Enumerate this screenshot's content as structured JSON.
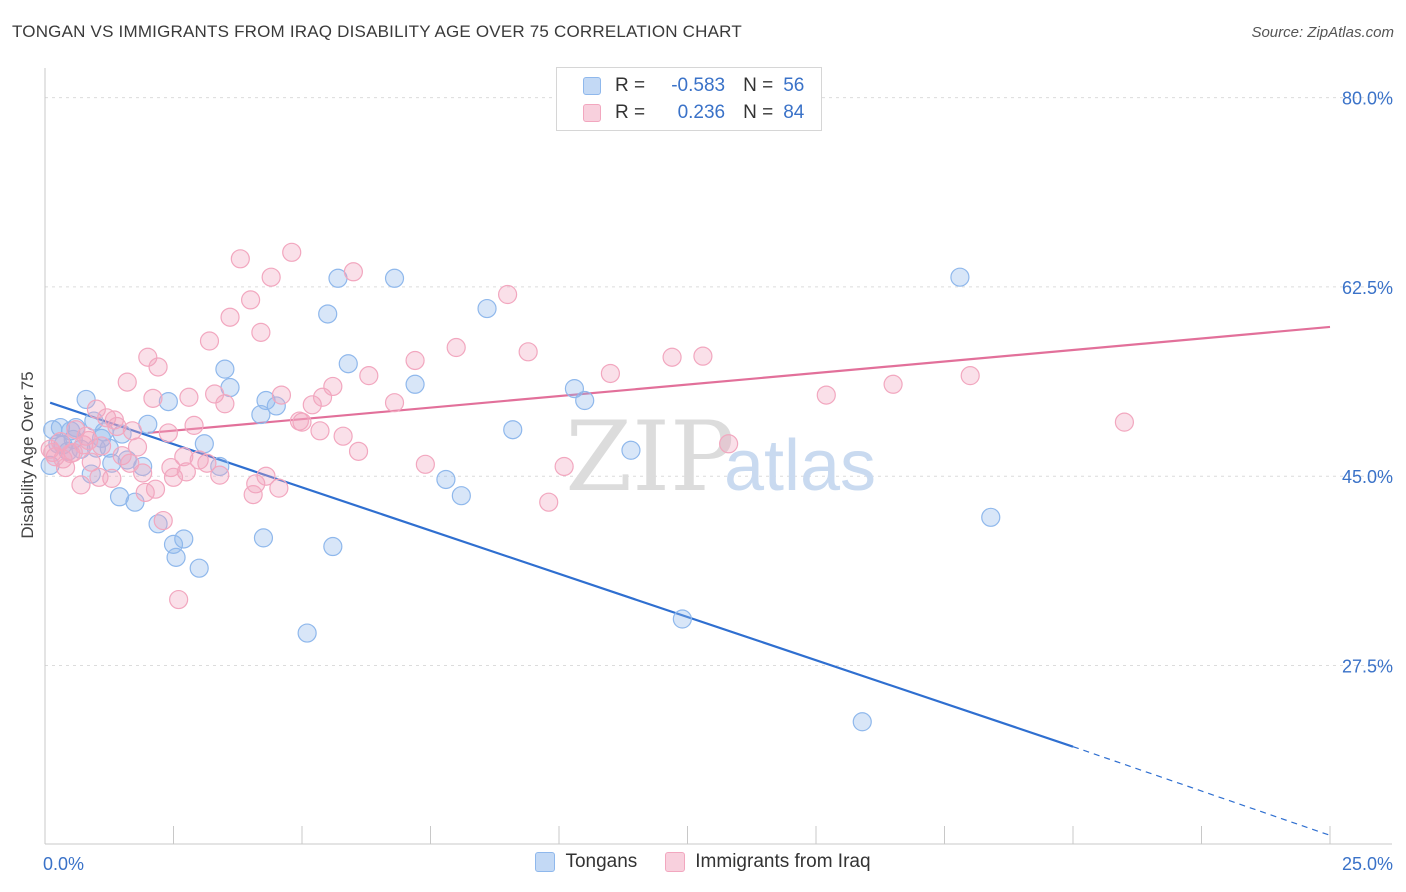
{
  "title": "TONGAN VS IMMIGRANTS FROM IRAQ DISABILITY AGE OVER 75 CORRELATION CHART",
  "source": "Source: ZipAtlas.com",
  "watermark": {
    "zip": "ZIP",
    "atlas": "atlas"
  },
  "legend": {
    "rows": [
      {
        "r_label": "R =",
        "r_value": "-0.583",
        "n_label": "N =",
        "n_value": "56"
      },
      {
        "r_label": "R =",
        "r_value": "0.236",
        "n_label": "N =",
        "n_value": "84"
      }
    ]
  },
  "chart_data": {
    "type": "scatter",
    "title": "TONGAN VS IMMIGRANTS FROM IRAQ DISABILITY AGE OVER 75 CORRELATION CHART",
    "xlabel": "",
    "ylabel": "Disability Age Over 75",
    "xlim": [
      0,
      25
    ],
    "ylim": [
      11,
      82
    ],
    "x_tick_labels": [
      "0.0%",
      "25.0%"
    ],
    "y_ticks": [
      27.5,
      45.0,
      62.5,
      80.0
    ],
    "y_tick_labels": [
      "27.5%",
      "45.0%",
      "62.5%",
      "80.0%"
    ],
    "grid": true,
    "legend_position": "top-center",
    "colors": {
      "Tongans": "#8fb8ec",
      "Immigrants from Iraq": "#f2a7bf",
      "Tongans_line": "#2f6fd0",
      "Iraq_line": "#e2709a"
    },
    "series": [
      {
        "name": "Tongans",
        "x": [
          0.15,
          0.3,
          0.5,
          0.7,
          0.25,
          0.45,
          0.9,
          1.0,
          1.3,
          1.6,
          1.9,
          2.2,
          2.5,
          3.0,
          0.6,
          0.8,
          1.1,
          1.5,
          2.0,
          2.4,
          3.1,
          3.5,
          3.6,
          4.2,
          4.3,
          4.5,
          5.5,
          5.7,
          5.9,
          6.8,
          7.2,
          7.8,
          8.1,
          8.6,
          9.1,
          10.3,
          10.5,
          11.4,
          12.4,
          15.9,
          17.8,
          18.4,
          0.35,
          0.95,
          1.45,
          1.75,
          2.7,
          3.4,
          4.25,
          5.1,
          5.6,
          2.55,
          1.15,
          0.55,
          1.25,
          0.1
        ],
        "y": [
          49.3,
          49.5,
          49.2,
          47.5,
          48.0,
          47.3,
          45.2,
          47.6,
          46.2,
          46.5,
          45.9,
          40.6,
          38.7,
          36.5,
          49.5,
          52.1,
          48.5,
          48.9,
          49.8,
          51.9,
          48.0,
          54.9,
          53.2,
          50.7,
          52.0,
          51.5,
          60.0,
          63.3,
          55.4,
          63.3,
          53.5,
          44.7,
          43.2,
          60.5,
          49.3,
          53.1,
          52.0,
          47.4,
          31.8,
          22.3,
          63.4,
          41.2,
          47.9,
          50.1,
          43.1,
          42.6,
          39.2,
          45.9,
          39.3,
          30.5,
          38.5,
          37.5,
          49.1,
          48.4,
          47.6,
          46.0
        ]
      },
      {
        "name": "Immigrants from Iraq",
        "x": [
          0.1,
          0.2,
          0.3,
          0.4,
          0.5,
          0.6,
          0.7,
          0.8,
          0.9,
          1.0,
          1.1,
          1.2,
          1.3,
          1.4,
          1.5,
          1.6,
          1.7,
          1.8,
          1.9,
          2.0,
          2.1,
          2.2,
          2.3,
          2.4,
          2.5,
          2.6,
          2.7,
          2.8,
          2.9,
          3.0,
          3.2,
          3.3,
          3.4,
          3.6,
          3.8,
          4.0,
          4.1,
          4.2,
          4.3,
          4.4,
          4.6,
          4.8,
          5.0,
          5.2,
          5.4,
          5.6,
          5.8,
          6.0,
          6.3,
          6.8,
          7.2,
          7.4,
          8.0,
          9.0,
          9.4,
          9.8,
          10.1,
          11.0,
          12.2,
          12.8,
          13.3,
          15.2,
          16.5,
          18.0,
          21.0,
          0.15,
          0.35,
          0.55,
          0.75,
          0.85,
          1.05,
          1.35,
          1.65,
          1.95,
          2.15,
          2.45,
          2.75,
          3.15,
          3.5,
          4.05,
          4.55,
          4.95,
          5.35,
          6.1
        ],
        "y": [
          47.5,
          46.8,
          48.2,
          45.8,
          47.1,
          49.3,
          44.2,
          48.7,
          46.3,
          51.2,
          47.8,
          50.4,
          44.8,
          49.6,
          46.9,
          53.7,
          49.2,
          47.7,
          45.3,
          56.0,
          52.2,
          55.1,
          40.9,
          49.0,
          44.9,
          33.6,
          46.8,
          52.3,
          49.7,
          46.5,
          57.5,
          52.6,
          45.1,
          59.7,
          65.1,
          61.3,
          44.3,
          58.3,
          45.0,
          63.4,
          52.5,
          65.7,
          50.0,
          51.6,
          52.3,
          53.3,
          48.7,
          63.9,
          54.3,
          51.8,
          55.7,
          46.1,
          56.9,
          61.8,
          56.5,
          42.6,
          45.9,
          54.5,
          56.0,
          56.1,
          48.0,
          52.5,
          53.5,
          54.3,
          50.0,
          47.2,
          46.6,
          47.2,
          47.9,
          48.3,
          44.9,
          50.2,
          46.2,
          43.5,
          43.8,
          45.8,
          45.4,
          46.2,
          51.7,
          43.3,
          43.9,
          50.1,
          49.2,
          47.3
        ]
      }
    ],
    "trendlines": [
      {
        "series": "Tongans",
        "x": [
          0.1,
          20.0
        ],
        "y": [
          51.8,
          20.0
        ],
        "extension_x": [
          20.0,
          25.0
        ],
        "extension_y": [
          20.0,
          11.8
        ]
      },
      {
        "series": "Immigrants from Iraq",
        "x": [
          2.0,
          25.0
        ],
        "y": [
          49.0,
          58.8
        ]
      }
    ]
  },
  "bottom_legend": [
    {
      "label": "Tongans"
    },
    {
      "label": "Immigrants from Iraq"
    }
  ]
}
